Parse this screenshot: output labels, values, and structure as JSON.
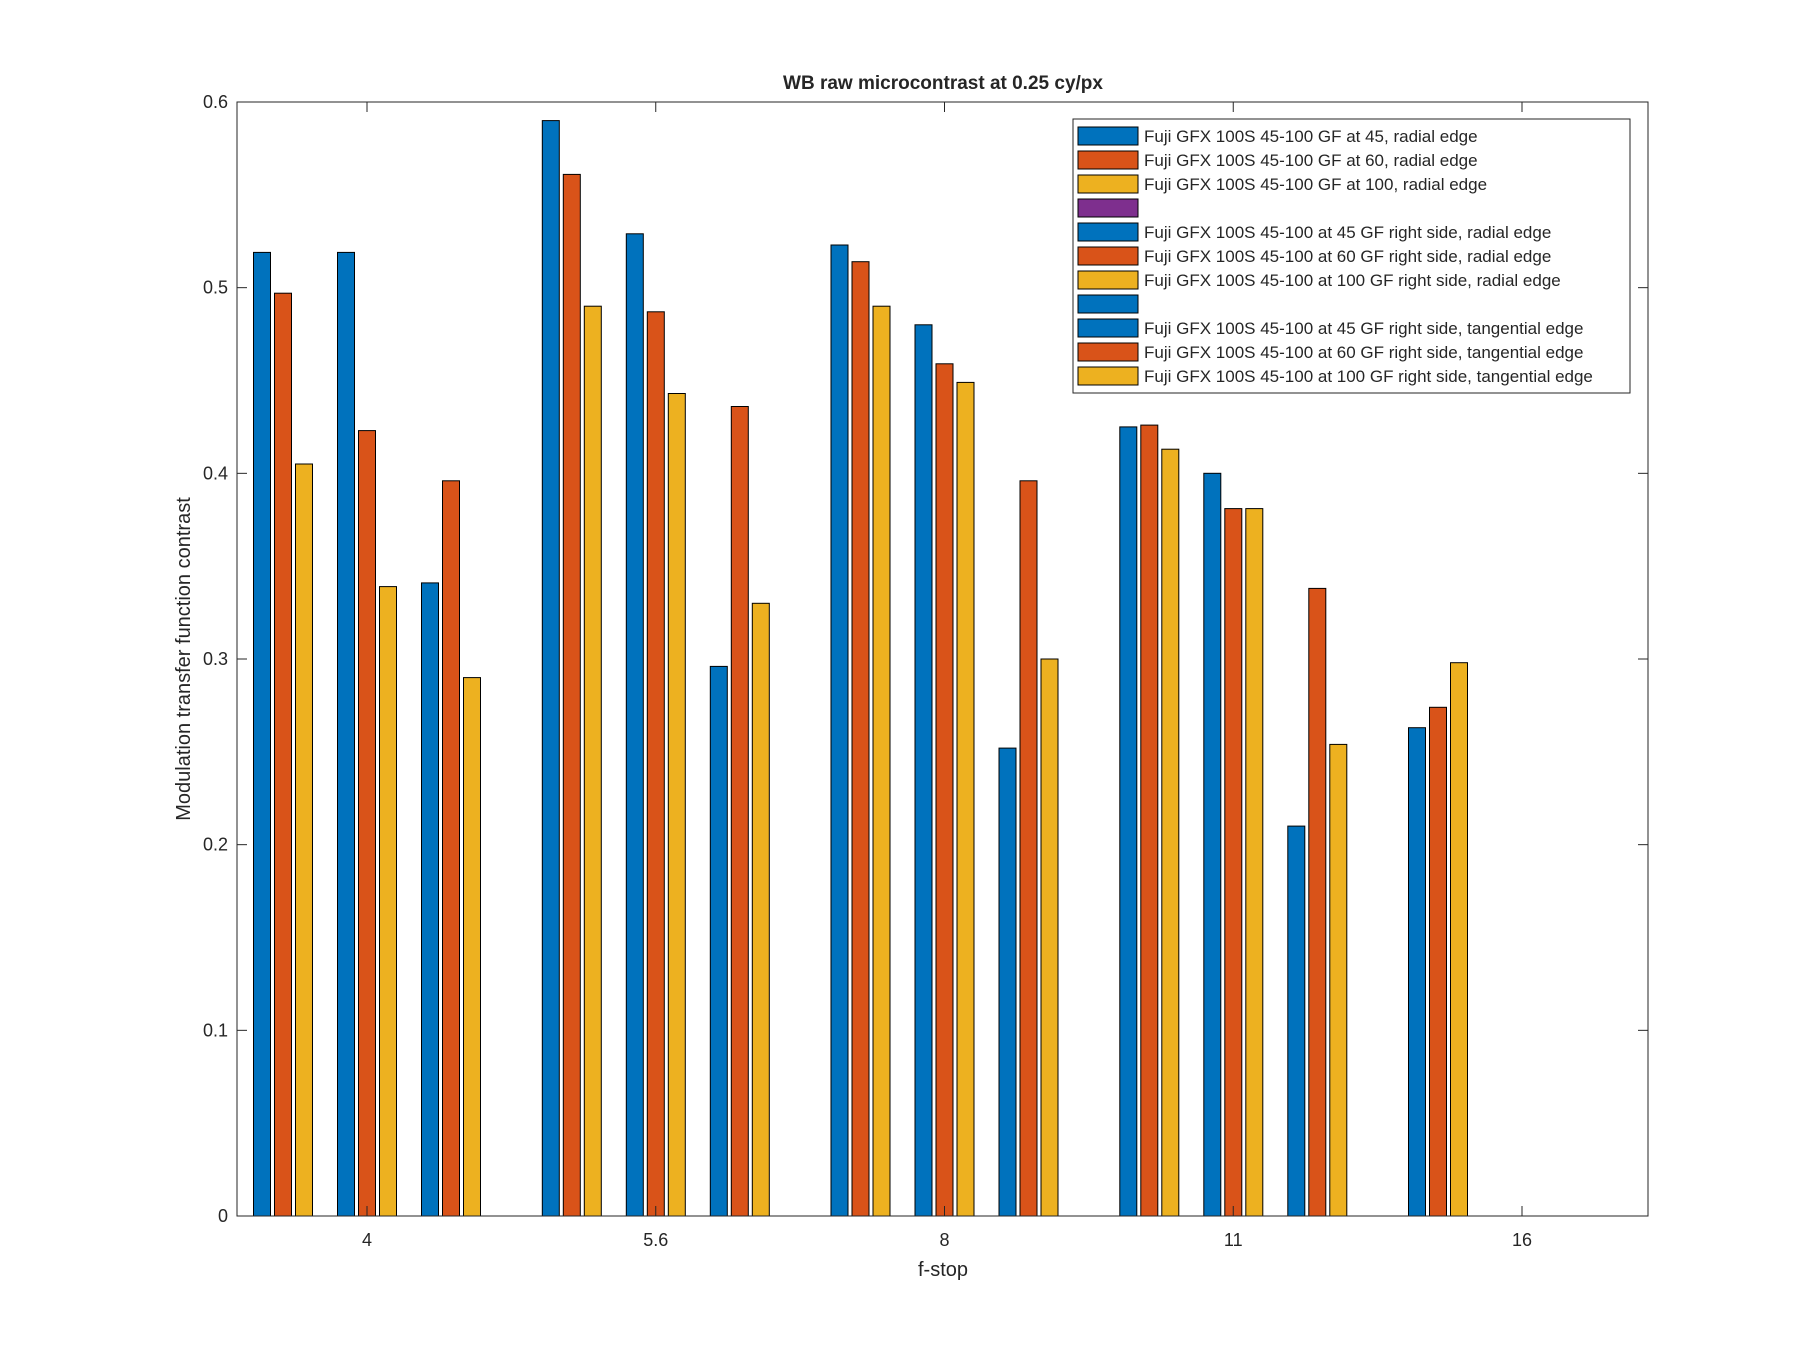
{
  "chart_data": {
    "type": "bar",
    "title": "WB raw  microcontrast at 0.25 cy/px",
    "xlabel": "f-stop",
    "ylabel": "Modulation transfer function contrast",
    "ylim": [
      0,
      0.6
    ],
    "yticks": [
      "0",
      "0.1",
      "0.2",
      "0.3",
      "0.4",
      "0.5",
      "0.6"
    ],
    "categories": [
      "4",
      "5.6",
      "8",
      "11",
      "16"
    ],
    "grid": false,
    "legend_position": "top-right",
    "groups": [
      {
        "name": "radial edge",
        "series": [
          {
            "name": "Fuji GFX 100S 45-100 GF at 45, radial edge",
            "color": "#0072BD",
            "values": [
              0.519,
              0.59,
              0.523,
              0.425,
              0.263
            ]
          },
          {
            "name": "Fuji GFX 100S 45-100 GF at 60, radial edge",
            "color": "#D95319",
            "values": [
              0.497,
              0.561,
              0.514,
              0.426,
              0.274
            ]
          },
          {
            "name": "Fuji GFX 100S 45-100 GF at 100, radial edge",
            "color": "#EDB120",
            "values": [
              0.405,
              0.49,
              0.49,
              0.413,
              0.298
            ]
          }
        ]
      },
      {
        "name": "right side, radial edge",
        "series": [
          {
            "name": "Fuji GFX 100S 45-100 at 45 GF right side, radial edge",
            "color": "#0072BD",
            "values": [
              0.519,
              0.529,
              0.48,
              0.4,
              null
            ]
          },
          {
            "name": "Fuji GFX 100S 45-100 at 60 GF right side, radial edge",
            "color": "#D95319",
            "values": [
              0.423,
              0.487,
              0.459,
              0.381,
              null
            ]
          },
          {
            "name": "Fuji GFX 100S 45-100 at 100 GF right side, radial edge",
            "color": "#EDB120",
            "values": [
              0.339,
              0.443,
              0.449,
              0.381,
              null
            ]
          }
        ]
      },
      {
        "name": "right side, tangential edge",
        "series": [
          {
            "name": "Fuji GFX 100S 45-100 at 45 GF right side, tangential edge",
            "color": "#0072BD",
            "values": [
              0.341,
              0.296,
              0.252,
              0.21,
              null
            ]
          },
          {
            "name": "Fuji GFX 100S 45-100 at 60 GF right side, tangential edge",
            "color": "#D95319",
            "values": [
              0.396,
              0.436,
              0.396,
              0.338,
              null
            ]
          },
          {
            "name": "Fuji GFX 100S 45-100 at 100 GF right side, tangential edge",
            "color": "#EDB120",
            "values": [
              0.29,
              0.33,
              0.3,
              0.254,
              null
            ]
          }
        ]
      }
    ],
    "legend": [
      {
        "label": "Fuji GFX 100S 45-100 GF at 45, radial edge",
        "color": "#0072BD"
      },
      {
        "label": "Fuji GFX 100S 45-100 GF at 60, radial edge",
        "color": "#D95319"
      },
      {
        "label": "Fuji GFX 100S 45-100 GF at 100, radial edge",
        "color": "#EDB120"
      },
      {
        "label": "",
        "color": "#7E2F8E"
      },
      {
        "label": "Fuji GFX 100S 45-100 at 45 GF right side, radial edge",
        "color": "#0072BD"
      },
      {
        "label": "Fuji GFX 100S 45-100 at 60 GF right side, radial edge",
        "color": "#D95319"
      },
      {
        "label": "Fuji GFX 100S 45-100 at 100 GF right side, radial edge",
        "color": "#EDB120"
      },
      {
        "label": "",
        "color": "#0072BD"
      },
      {
        "label": "Fuji GFX 100S 45-100 at 45 GF right side, tangential edge",
        "color": "#0072BD"
      },
      {
        "label": "Fuji GFX 100S 45-100 at 60 GF right side, tangential edge",
        "color": "#D95319"
      },
      {
        "label": "Fuji GFX 100S 45-100 at 100 GF right side, tangential edge",
        "color": "#EDB120"
      }
    ]
  }
}
